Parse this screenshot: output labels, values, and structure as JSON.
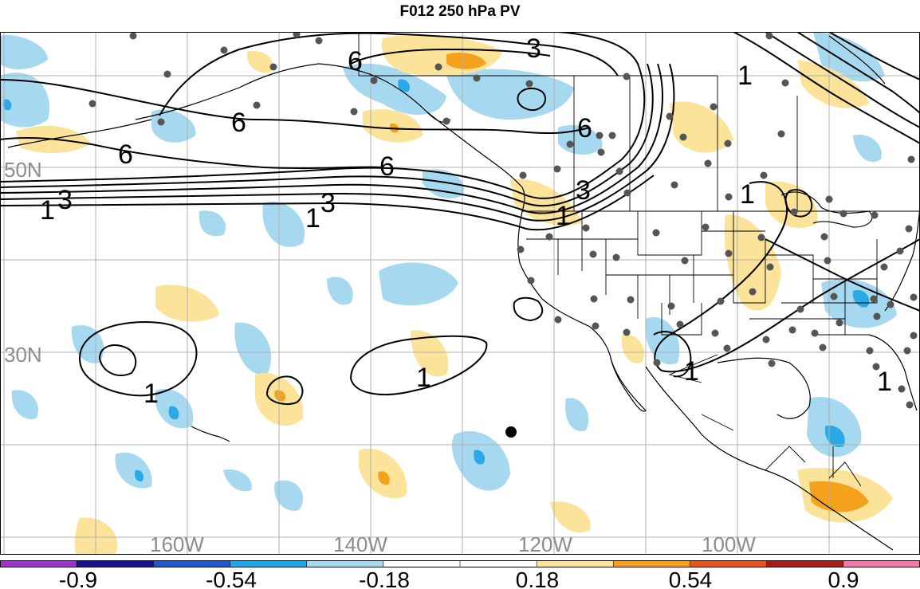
{
  "title": "F012 250 hPa PV",
  "map": {
    "lat_labels": [
      "50N",
      "30N"
    ],
    "lon_labels": [
      "160W",
      "140W",
      "120W",
      "100W"
    ],
    "contour_labels": [
      "6",
      "3",
      "6",
      "6",
      "6",
      "6",
      "3",
      "3",
      "1",
      "1",
      "1",
      "3",
      "1",
      "1",
      "1",
      "1",
      "1",
      "1"
    ],
    "colors": {
      "land_outline": "#000000",
      "grid": "#b0b0b0",
      "label_gray": "#8c8c8c",
      "station_dot": "#555555",
      "neg_light": "#a6d8f0",
      "neg_mid": "#2aa9e6",
      "pos_light": "#fbe49a",
      "pos_mid": "#f4a21c",
      "pos_strong": "#e1571c"
    }
  },
  "colorbar": {
    "tick_labels": [
      "-0.9",
      "-0.54",
      "-0.18",
      "0.18",
      "0.54",
      "0.9"
    ],
    "colors": [
      "#9d32c8",
      "#19128a",
      "#2157c8",
      "#1aa8e8",
      "#a6d8f0",
      "#ffffff",
      "#ffffff",
      "#fbe49a",
      "#f4a21c",
      "#e1571c",
      "#a51c1c",
      "#f07aa8"
    ]
  }
}
